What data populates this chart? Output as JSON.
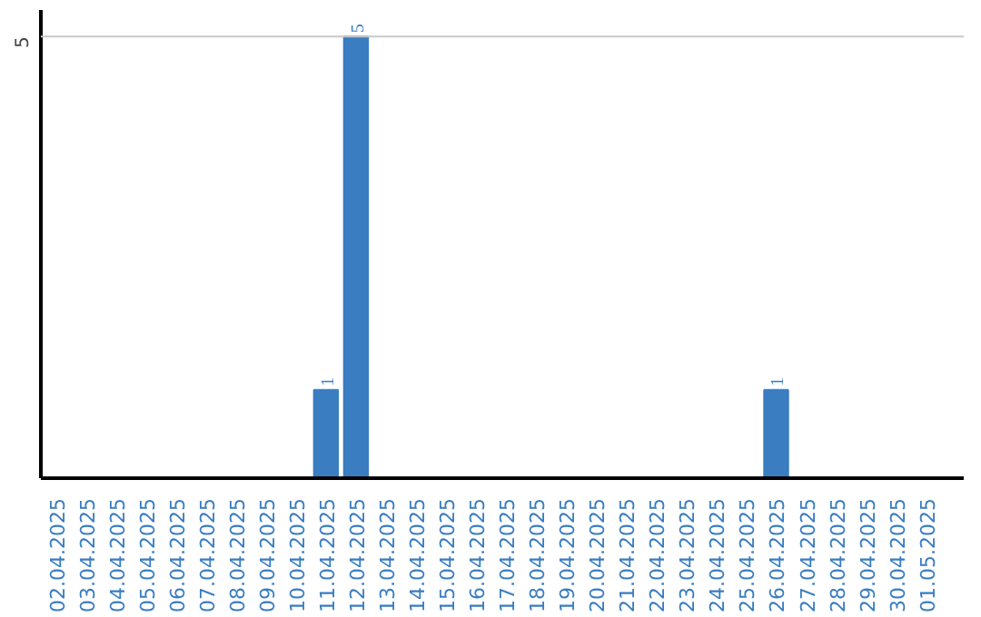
{
  "chart_data": {
    "type": "bar",
    "categories": [
      "02.04.2025",
      "03.04.2025",
      "04.04.2025",
      "05.04.2025",
      "06.04.2025",
      "07.04.2025",
      "08.04.2025",
      "09.04.2025",
      "10.04.2025",
      "11.04.2025",
      "12.04.2025",
      "13.04.2025",
      "14.04.2025",
      "15.04.2025",
      "16.04.2025",
      "17.04.2025",
      "18.04.2025",
      "19.04.2025",
      "20.04.2025",
      "21.04.2025",
      "22.04.2025",
      "23.04.2025",
      "24.04.2025",
      "25.04.2025",
      "26.04.2025",
      "27.04.2025",
      "28.04.2025",
      "29.04.2025",
      "30.04.2025",
      "01.05.2025"
    ],
    "values": [
      0,
      0,
      0,
      0,
      0,
      0,
      0,
      0,
      0,
      1,
      5,
      0,
      0,
      0,
      0,
      0,
      0,
      0,
      0,
      0,
      0,
      0,
      0,
      0,
      1,
      0,
      0,
      0,
      0,
      0
    ],
    "value_labels": [
      null,
      null,
      null,
      null,
      null,
      null,
      null,
      null,
      null,
      "1",
      "5",
      null,
      null,
      null,
      null,
      null,
      null,
      null,
      null,
      null,
      null,
      null,
      null,
      null,
      "1",
      null,
      null,
      null,
      null,
      null
    ],
    "color": "#3a7dc1",
    "ylim": [
      0,
      5.3
    ],
    "ref_lines": [
      {
        "axis": "y",
        "value": 5,
        "label": "5",
        "color": "#c8c8c8"
      }
    ]
  }
}
